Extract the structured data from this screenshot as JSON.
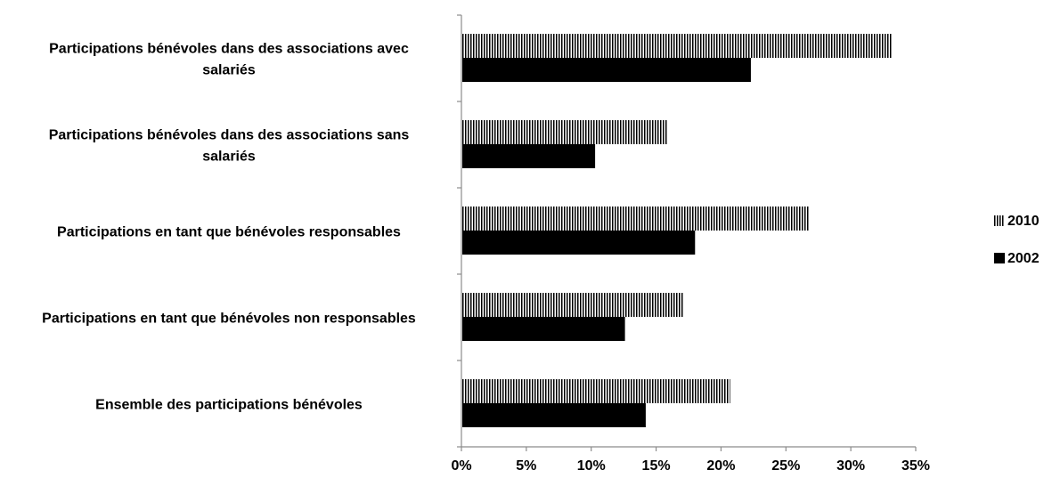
{
  "chart_data": {
    "type": "bar",
    "orientation": "horizontal",
    "categories": [
      [
        "Participations bénévoles dans des associations avec",
        "salariés"
      ],
      [
        "Participations bénévoles dans des associations sans",
        "salariés"
      ],
      [
        "Participations en tant que bénévoles responsables"
      ],
      [
        "Participations en tant que bénévoles non responsables"
      ],
      [
        "Ensemble des participations bénévoles"
      ]
    ],
    "series": [
      {
        "name": "2010",
        "values": [
          33.2,
          15.9,
          26.8,
          17.1,
          20.7
        ],
        "pattern": "vertical-stripes",
        "color": "#000000"
      },
      {
        "name": "2002",
        "values": [
          22.3,
          10.3,
          18.0,
          12.6,
          14.2
        ],
        "pattern": "solid",
        "color": "#000000"
      }
    ],
    "x_ticks": [
      "0%",
      "5%",
      "10%",
      "15%",
      "20%",
      "25%",
      "30%",
      "35%"
    ],
    "xlim": [
      0,
      35
    ],
    "xlabel": "",
    "ylabel": "",
    "title": "",
    "grid": false,
    "legend_position": "right"
  }
}
